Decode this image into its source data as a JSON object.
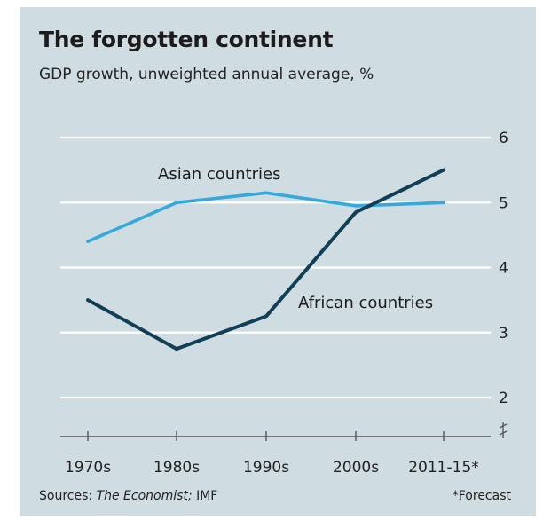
{
  "title": "The forgotten continent",
  "subtitle": "GDP growth, unweighted annual average, %",
  "source": {
    "prefix": "Sources:",
    "publication": "The Economist;",
    "org": "IMF"
  },
  "footnote": "*Forecast",
  "colors": {
    "background": "#cfdde3",
    "asian": "#35a9dc",
    "african": "#123f55",
    "gridline": "#ffffff",
    "axis": "#555555"
  },
  "chart_data": {
    "type": "line",
    "title": "The forgotten continent",
    "subtitle": "GDP growth, unweighted annual average, %",
    "categories": [
      "1970s",
      "1980s",
      "1990s",
      "2000s",
      "2011-15*"
    ],
    "series": [
      {
        "name": "Asian countries",
        "values": [
          4.4,
          5.0,
          5.15,
          4.95,
          5.0
        ]
      },
      {
        "name": "African countries",
        "values": [
          3.5,
          2.75,
          3.25,
          4.85,
          5.5
        ]
      }
    ],
    "yticks": [
      2,
      3,
      4,
      5,
      6
    ],
    "ylim": [
      2,
      6
    ],
    "y_axis_side": "right",
    "axis_break": true,
    "grid": true,
    "legend": "inline labels"
  }
}
